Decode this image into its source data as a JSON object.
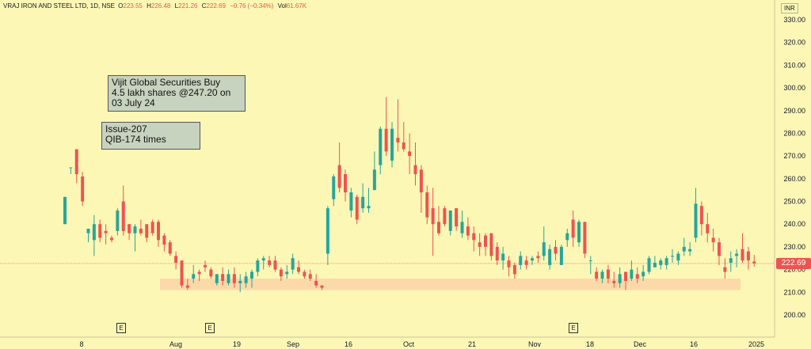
{
  "header": {
    "symbol": "VRAJ IRON AND STEEL LTD, 1D, NSE",
    "o_label": "O",
    "o_value": "223.55",
    "h_label": "H",
    "h_value": "226.48",
    "l_label": "L",
    "l_value": "221.26",
    "c_label": "C",
    "c_value": "222.69",
    "change": "−0.76 (−0.34%)",
    "vol_label": "Vol",
    "vol_value": "61.67K"
  },
  "currency": "INR",
  "last_price_label": "222.69",
  "annotations": [
    {
      "lines": [
        "Vijit Global Securities Buy",
        "4.5 lakh shares @247.20 on",
        "03 July 24"
      ]
    },
    {
      "lines": [
        "Issue-207",
        "QIB-174 times"
      ]
    }
  ],
  "event_badge_label": "E",
  "colors": {
    "background": "#fdf7b6",
    "up": "#26a69a",
    "down": "#ef5350",
    "support_zone": "#fcd9a8",
    "note_fill": "#c8d3bf"
  },
  "chart_data": {
    "type": "candlestick",
    "title": "VRAJ IRON AND STEEL LTD, 1D, NSE",
    "y_ticks": [
      200,
      210,
      220,
      230,
      240,
      250,
      260,
      270,
      280,
      290,
      300,
      310,
      320,
      330
    ],
    "x_ticks": [
      "8",
      "Aug",
      "19",
      "Sep",
      "16",
      "Oct",
      "21",
      "Nov",
      "18",
      "Dec",
      "16",
      "2025"
    ],
    "ylim": [
      195,
      335
    ],
    "grid": false,
    "last_close": 222.69,
    "support_zone": [
      211,
      216
    ],
    "events": [
      "E",
      "E",
      "E"
    ],
    "candles": [
      {
        "o": 240,
        "h": 252,
        "l": 240,
        "c": 252
      },
      {
        "o": 265,
        "h": 265,
        "l": 262,
        "c": 265
      },
      {
        "o": 273,
        "h": 273,
        "l": 258,
        "c": 262
      },
      {
        "o": 261,
        "h": 263,
        "l": 248,
        "c": 250
      },
      {
        "o": 236,
        "h": 238,
        "l": 232,
        "c": 238
      },
      {
        "o": 233,
        "h": 244,
        "l": 226,
        "c": 240
      },
      {
        "o": 240,
        "h": 242,
        "l": 232,
        "c": 234
      },
      {
        "o": 237,
        "h": 240,
        "l": 231,
        "c": 236
      },
      {
        "o": 234,
        "h": 235,
        "l": 232,
        "c": 233
      },
      {
        "o": 237,
        "h": 247,
        "l": 235,
        "c": 246
      },
      {
        "o": 250,
        "h": 257,
        "l": 235,
        "c": 237
      },
      {
        "o": 240,
        "h": 240,
        "l": 233,
        "c": 236
      },
      {
        "o": 236,
        "h": 240,
        "l": 228,
        "c": 239
      },
      {
        "o": 238,
        "h": 242,
        "l": 235,
        "c": 236
      },
      {
        "o": 240,
        "h": 240,
        "l": 232,
        "c": 234
      },
      {
        "o": 241,
        "h": 242,
        "l": 235,
        "c": 236
      },
      {
        "o": 241,
        "h": 242,
        "l": 230,
        "c": 233
      },
      {
        "o": 235,
        "h": 236,
        "l": 228,
        "c": 231
      },
      {
        "o": 232,
        "h": 233,
        "l": 226,
        "c": 227
      },
      {
        "o": 226,
        "h": 228,
        "l": 220,
        "c": 223
      },
      {
        "o": 224,
        "h": 224,
        "l": 212,
        "c": 213
      },
      {
        "o": 213,
        "h": 216,
        "l": 211,
        "c": 212
      },
      {
        "o": 216,
        "h": 222,
        "l": 214,
        "c": 218
      },
      {
        "o": 219,
        "h": 220,
        "l": 215,
        "c": 218
      },
      {
        "o": 222,
        "h": 224,
        "l": 219,
        "c": 221
      },
      {
        "o": 220,
        "h": 221,
        "l": 216,
        "c": 217
      },
      {
        "o": 214,
        "h": 218,
        "l": 213,
        "c": 218
      },
      {
        "o": 218,
        "h": 221,
        "l": 213,
        "c": 215
      },
      {
        "o": 214,
        "h": 220,
        "l": 213,
        "c": 218
      },
      {
        "o": 218,
        "h": 221,
        "l": 212,
        "c": 214
      },
      {
        "o": 214,
        "h": 218,
        "l": 210,
        "c": 215
      },
      {
        "o": 214,
        "h": 219,
        "l": 212,
        "c": 217
      },
      {
        "o": 216,
        "h": 220,
        "l": 212,
        "c": 219
      },
      {
        "o": 219,
        "h": 225,
        "l": 217,
        "c": 224
      },
      {
        "o": 224,
        "h": 226,
        "l": 220,
        "c": 225
      },
      {
        "o": 224,
        "h": 226,
        "l": 221,
        "c": 222
      },
      {
        "o": 224,
        "h": 226,
        "l": 219,
        "c": 220
      },
      {
        "o": 220,
        "h": 221,
        "l": 215,
        "c": 217
      },
      {
        "o": 218,
        "h": 222,
        "l": 216,
        "c": 219
      },
      {
        "o": 220,
        "h": 227,
        "l": 218,
        "c": 225
      },
      {
        "o": 221,
        "h": 224,
        "l": 218,
        "c": 219
      },
      {
        "o": 219,
        "h": 220,
        "l": 216,
        "c": 217
      },
      {
        "o": 218,
        "h": 220,
        "l": 215,
        "c": 216
      },
      {
        "o": 215,
        "h": 218,
        "l": 212,
        "c": 213
      },
      {
        "o": 213,
        "h": 213,
        "l": 211,
        "c": 212
      },
      {
        "o": 227,
        "h": 248,
        "l": 222,
        "c": 247
      },
      {
        "o": 251,
        "h": 262,
        "l": 248,
        "c": 261
      },
      {
        "o": 266,
        "h": 276,
        "l": 254,
        "c": 256
      },
      {
        "o": 262,
        "h": 264,
        "l": 250,
        "c": 254
      },
      {
        "o": 246,
        "h": 256,
        "l": 243,
        "c": 254
      },
      {
        "o": 252,
        "h": 253,
        "l": 240,
        "c": 242
      },
      {
        "o": 247,
        "h": 258,
        "l": 245,
        "c": 252
      },
      {
        "o": 247,
        "h": 256,
        "l": 245,
        "c": 248
      },
      {
        "o": 255,
        "h": 272,
        "l": 255,
        "c": 264
      },
      {
        "o": 266,
        "h": 283,
        "l": 262,
        "c": 282
      },
      {
        "o": 282,
        "h": 296,
        "l": 270,
        "c": 272
      },
      {
        "o": 268,
        "h": 285,
        "l": 265,
        "c": 282
      },
      {
        "o": 278,
        "h": 295,
        "l": 272,
        "c": 276
      },
      {
        "o": 276,
        "h": 285,
        "l": 272,
        "c": 273
      },
      {
        "o": 272,
        "h": 280,
        "l": 262,
        "c": 270
      },
      {
        "o": 266,
        "h": 276,
        "l": 257,
        "c": 262
      },
      {
        "o": 264,
        "h": 266,
        "l": 245,
        "c": 254
      },
      {
        "o": 254,
        "h": 257,
        "l": 240,
        "c": 243
      },
      {
        "o": 247,
        "h": 256,
        "l": 226,
        "c": 240
      },
      {
        "o": 241,
        "h": 248,
        "l": 235,
        "c": 236
      },
      {
        "o": 247,
        "h": 248,
        "l": 239,
        "c": 240
      },
      {
        "o": 237,
        "h": 246,
        "l": 235,
        "c": 246
      },
      {
        "o": 247,
        "h": 247,
        "l": 237,
        "c": 239
      },
      {
        "o": 236,
        "h": 246,
        "l": 234,
        "c": 241
      },
      {
        "o": 239,
        "h": 243,
        "l": 233,
        "c": 235
      },
      {
        "o": 236,
        "h": 239,
        "l": 228,
        "c": 233
      },
      {
        "o": 232,
        "h": 236,
        "l": 226,
        "c": 230
      },
      {
        "o": 235,
        "h": 236,
        "l": 226,
        "c": 230
      },
      {
        "o": 236,
        "h": 236,
        "l": 224,
        "c": 226
      },
      {
        "o": 230,
        "h": 232,
        "l": 222,
        "c": 224
      },
      {
        "o": 224,
        "h": 230,
        "l": 220,
        "c": 227
      },
      {
        "o": 224,
        "h": 226,
        "l": 217,
        "c": 221
      },
      {
        "o": 222,
        "h": 223,
        "l": 216,
        "c": 218
      },
      {
        "o": 222,
        "h": 228,
        "l": 220,
        "c": 226
      },
      {
        "o": 224,
        "h": 226,
        "l": 220,
        "c": 222
      },
      {
        "o": 224,
        "h": 226,
        "l": 222,
        "c": 225
      },
      {
        "o": 226,
        "h": 228,
        "l": 223,
        "c": 225
      },
      {
        "o": 226,
        "h": 239,
        "l": 224,
        "c": 232
      },
      {
        "o": 222,
        "h": 231,
        "l": 220,
        "c": 229
      },
      {
        "o": 230,
        "h": 233,
        "l": 224,
        "c": 227
      },
      {
        "o": 222,
        "h": 231,
        "l": 222,
        "c": 230
      },
      {
        "o": 233,
        "h": 238,
        "l": 230,
        "c": 236
      },
      {
        "o": 242,
        "h": 246,
        "l": 230,
        "c": 234
      },
      {
        "o": 232,
        "h": 242,
        "l": 230,
        "c": 241
      },
      {
        "o": 241,
        "h": 241,
        "l": 225,
        "c": 227
      },
      {
        "o": 224,
        "h": 226,
        "l": 218,
        "c": 224
      },
      {
        "o": 219,
        "h": 221,
        "l": 215,
        "c": 216
      },
      {
        "o": 216,
        "h": 220,
        "l": 214,
        "c": 219
      },
      {
        "o": 220,
        "h": 222,
        "l": 214,
        "c": 216
      },
      {
        "o": 215,
        "h": 219,
        "l": 212,
        "c": 214
      },
      {
        "o": 214,
        "h": 221,
        "l": 212,
        "c": 218
      },
      {
        "o": 219,
        "h": 219,
        "l": 211,
        "c": 215
      },
      {
        "o": 216,
        "h": 224,
        "l": 215,
        "c": 220
      },
      {
        "o": 218,
        "h": 221,
        "l": 214,
        "c": 216
      },
      {
        "o": 217,
        "h": 222,
        "l": 215,
        "c": 219
      },
      {
        "o": 219,
        "h": 226,
        "l": 218,
        "c": 225
      },
      {
        "o": 221,
        "h": 226,
        "l": 221,
        "c": 223
      },
      {
        "o": 222,
        "h": 225,
        "l": 220,
        "c": 224
      },
      {
        "o": 222,
        "h": 226,
        "l": 220,
        "c": 225
      },
      {
        "o": 226,
        "h": 229,
        "l": 223,
        "c": 226
      },
      {
        "o": 224,
        "h": 228,
        "l": 222,
        "c": 227
      },
      {
        "o": 228,
        "h": 234,
        "l": 226,
        "c": 230
      },
      {
        "o": 228,
        "h": 232,
        "l": 226,
        "c": 229
      },
      {
        "o": 234,
        "h": 256,
        "l": 232,
        "c": 249
      },
      {
        "o": 248,
        "h": 250,
        "l": 235,
        "c": 240
      },
      {
        "o": 240,
        "h": 245,
        "l": 232,
        "c": 236
      },
      {
        "o": 234,
        "h": 238,
        "l": 228,
        "c": 232
      },
      {
        "o": 232,
        "h": 234,
        "l": 222,
        "c": 226
      },
      {
        "o": 221,
        "h": 225,
        "l": 216,
        "c": 219
      },
      {
        "o": 223,
        "h": 228,
        "l": 219,
        "c": 225
      },
      {
        "o": 226,
        "h": 229,
        "l": 221,
        "c": 227
      },
      {
        "o": 229,
        "h": 236,
        "l": 223,
        "c": 224
      },
      {
        "o": 228,
        "h": 230,
        "l": 220,
        "c": 224
      },
      {
        "o": 223.55,
        "h": 226.48,
        "l": 221.26,
        "c": 222.69
      }
    ]
  }
}
